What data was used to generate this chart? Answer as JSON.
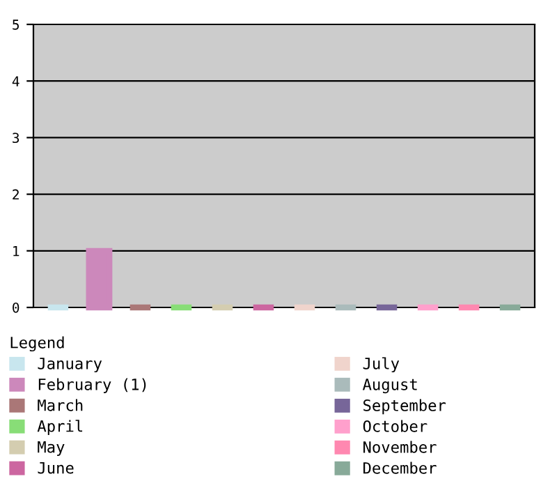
{
  "chart_data": {
    "type": "bar",
    "categories": [
      null,
      null,
      null,
      null,
      null,
      null,
      null,
      null,
      null,
      null,
      null,
      null
    ],
    "series": [
      {
        "name": "January",
        "color": "#c8e6ee",
        "values": [
          0,
          null,
          null,
          null,
          null,
          null,
          null,
          null,
          null,
          null,
          null,
          null
        ]
      },
      {
        "name": "February (1)",
        "color": "#cc88bb",
        "values": [
          null,
          1,
          null,
          null,
          null,
          null,
          null,
          null,
          null,
          null,
          null,
          null
        ]
      },
      {
        "name": "March",
        "color": "#aa7777",
        "values": [
          null,
          null,
          0,
          null,
          null,
          null,
          null,
          null,
          null,
          null,
          null,
          null
        ]
      },
      {
        "name": "April",
        "color": "#88dd77",
        "values": [
          null,
          null,
          null,
          0,
          null,
          null,
          null,
          null,
          null,
          null,
          null,
          null
        ]
      },
      {
        "name": "May",
        "color": "#d4cdb0",
        "values": [
          null,
          null,
          null,
          null,
          0,
          null,
          null,
          null,
          null,
          null,
          null,
          null
        ]
      },
      {
        "name": "June",
        "color": "#cc66a0",
        "values": [
          null,
          null,
          null,
          null,
          null,
          0,
          null,
          null,
          null,
          null,
          null,
          null
        ]
      },
      {
        "name": "July",
        "color": "#f0d4cc",
        "values": [
          null,
          null,
          null,
          null,
          null,
          null,
          0,
          null,
          null,
          null,
          null,
          null
        ]
      },
      {
        "name": "August",
        "color": "#aabbbb",
        "values": [
          null,
          null,
          null,
          null,
          null,
          null,
          null,
          0,
          null,
          null,
          null,
          null
        ]
      },
      {
        "name": "September",
        "color": "#776699",
        "values": [
          null,
          null,
          null,
          null,
          null,
          null,
          null,
          null,
          0,
          null,
          null,
          null
        ]
      },
      {
        "name": "October",
        "color": "#ffa0cc",
        "values": [
          null,
          null,
          null,
          null,
          null,
          null,
          null,
          null,
          null,
          0,
          null,
          null
        ]
      },
      {
        "name": "November",
        "color": "#ff88b0",
        "values": [
          null,
          null,
          null,
          null,
          null,
          null,
          null,
          null,
          null,
          null,
          0,
          null
        ]
      },
      {
        "name": "December",
        "color": "#88aa99",
        "values": [
          null,
          null,
          null,
          null,
          null,
          null,
          null,
          null,
          null,
          null,
          null,
          0
        ]
      }
    ],
    "ylim": [
      0,
      5
    ],
    "yticks": [
      0,
      1,
      2,
      3,
      4,
      5
    ],
    "grid": "y",
    "legend": "bottom",
    "legend_title": "Legend"
  }
}
